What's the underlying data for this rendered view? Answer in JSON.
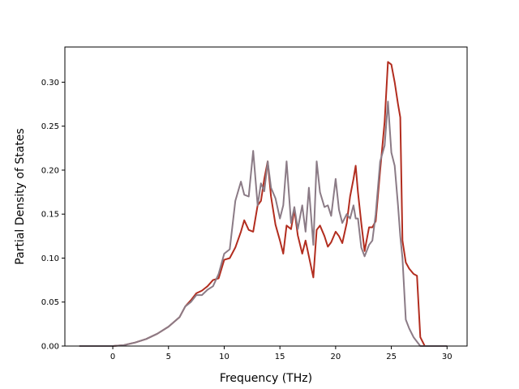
{
  "chart_data": {
    "type": "line",
    "title": "",
    "xlabel": "Frequency (THz)",
    "ylabel": "Partial Density of States",
    "xlim": [
      -4.3,
      31.8
    ],
    "ylim": [
      0.0,
      0.34
    ],
    "xticks": [
      0,
      5,
      10,
      15,
      20,
      25,
      30
    ],
    "xtick_labels": [
      "0",
      "5",
      "10",
      "15",
      "20",
      "25",
      "30"
    ],
    "yticks": [
      0.0,
      0.05,
      0.1,
      0.15,
      0.2,
      0.25,
      0.3
    ],
    "ytick_labels": [
      "0.00",
      "0.05",
      "0.10",
      "0.15",
      "0.20",
      "0.25",
      "0.30"
    ],
    "grid": false,
    "legend": "none",
    "series": [
      {
        "color": "#b22d1f",
        "points": [
          [
            -3,
            0
          ],
          [
            0,
            0
          ],
          [
            1,
            0.001
          ],
          [
            2,
            0.004
          ],
          [
            3,
            0.008
          ],
          [
            4,
            0.014
          ],
          [
            5,
            0.022
          ],
          [
            6,
            0.033
          ],
          [
            6.5,
            0.045
          ],
          [
            7,
            0.052
          ],
          [
            7.5,
            0.06
          ],
          [
            8,
            0.063
          ],
          [
            8.5,
            0.068
          ],
          [
            9,
            0.075
          ],
          [
            9.5,
            0.077
          ],
          [
            10,
            0.098
          ],
          [
            10.5,
            0.1
          ],
          [
            11,
            0.112
          ],
          [
            11.5,
            0.13
          ],
          [
            11.8,
            0.143
          ],
          [
            12.2,
            0.132
          ],
          [
            12.6,
            0.13
          ],
          [
            13,
            0.16
          ],
          [
            13.3,
            0.165
          ],
          [
            13.6,
            0.19
          ],
          [
            13.9,
            0.21
          ],
          [
            14.2,
            0.17
          ],
          [
            14.6,
            0.138
          ],
          [
            15,
            0.12
          ],
          [
            15.3,
            0.105
          ],
          [
            15.6,
            0.137
          ],
          [
            16,
            0.133
          ],
          [
            16.3,
            0.155
          ],
          [
            16.6,
            0.126
          ],
          [
            17,
            0.105
          ],
          [
            17.3,
            0.12
          ],
          [
            17.6,
            0.102
          ],
          [
            18,
            0.078
          ],
          [
            18.3,
            0.132
          ],
          [
            18.6,
            0.137
          ],
          [
            19,
            0.125
          ],
          [
            19.3,
            0.113
          ],
          [
            19.6,
            0.118
          ],
          [
            20,
            0.13
          ],
          [
            20.3,
            0.125
          ],
          [
            20.6,
            0.117
          ],
          [
            21,
            0.14
          ],
          [
            21.3,
            0.17
          ],
          [
            21.6,
            0.19
          ],
          [
            21.8,
            0.205
          ],
          [
            22,
            0.175
          ],
          [
            22.3,
            0.14
          ],
          [
            22.6,
            0.108
          ],
          [
            23,
            0.135
          ],
          [
            23.3,
            0.135
          ],
          [
            23.6,
            0.142
          ],
          [
            24,
            0.2
          ],
          [
            24.4,
            0.255
          ],
          [
            24.7,
            0.323
          ],
          [
            25,
            0.32
          ],
          [
            25.3,
            0.3
          ],
          [
            25.6,
            0.275
          ],
          [
            25.8,
            0.26
          ],
          [
            26,
            0.12
          ],
          [
            26.3,
            0.095
          ],
          [
            26.6,
            0.088
          ],
          [
            27,
            0.082
          ],
          [
            27.3,
            0.08
          ],
          [
            27.6,
            0.01
          ],
          [
            28,
            0
          ],
          [
            30,
            0
          ]
        ]
      },
      {
        "color": "#8b7b86",
        "points": [
          [
            -3,
            0
          ],
          [
            0,
            0
          ],
          [
            1,
            0.001
          ],
          [
            2,
            0.004
          ],
          [
            3,
            0.008
          ],
          [
            4,
            0.014
          ],
          [
            5,
            0.022
          ],
          [
            6,
            0.033
          ],
          [
            6.5,
            0.045
          ],
          [
            7,
            0.05
          ],
          [
            7.5,
            0.058
          ],
          [
            8,
            0.058
          ],
          [
            8.5,
            0.064
          ],
          [
            9,
            0.068
          ],
          [
            9.5,
            0.082
          ],
          [
            10,
            0.105
          ],
          [
            10.5,
            0.11
          ],
          [
            11,
            0.165
          ],
          [
            11.5,
            0.187
          ],
          [
            11.8,
            0.172
          ],
          [
            12.2,
            0.17
          ],
          [
            12.6,
            0.222
          ],
          [
            13,
            0.16
          ],
          [
            13.3,
            0.185
          ],
          [
            13.6,
            0.176
          ],
          [
            13.9,
            0.21
          ],
          [
            14.2,
            0.18
          ],
          [
            14.6,
            0.168
          ],
          [
            15,
            0.145
          ],
          [
            15.3,
            0.16
          ],
          [
            15.6,
            0.21
          ],
          [
            16,
            0.14
          ],
          [
            16.3,
            0.158
          ],
          [
            16.6,
            0.133
          ],
          [
            17,
            0.16
          ],
          [
            17.3,
            0.13
          ],
          [
            17.6,
            0.18
          ],
          [
            18,
            0.115
          ],
          [
            18.3,
            0.21
          ],
          [
            18.6,
            0.175
          ],
          [
            19,
            0.158
          ],
          [
            19.3,
            0.16
          ],
          [
            19.6,
            0.148
          ],
          [
            20,
            0.19
          ],
          [
            20.3,
            0.155
          ],
          [
            20.6,
            0.14
          ],
          [
            21,
            0.15
          ],
          [
            21.3,
            0.145
          ],
          [
            21.6,
            0.16
          ],
          [
            21.8,
            0.145
          ],
          [
            22,
            0.145
          ],
          [
            22.3,
            0.112
          ],
          [
            22.6,
            0.102
          ],
          [
            23,
            0.115
          ],
          [
            23.3,
            0.12
          ],
          [
            23.6,
            0.15
          ],
          [
            24,
            0.21
          ],
          [
            24.4,
            0.228
          ],
          [
            24.7,
            0.278
          ],
          [
            25,
            0.22
          ],
          [
            25.3,
            0.205
          ],
          [
            25.6,
            0.16
          ],
          [
            25.8,
            0.125
          ],
          [
            26,
            0.1
          ],
          [
            26.3,
            0.03
          ],
          [
            26.6,
            0.02
          ],
          [
            27,
            0.01
          ],
          [
            27.3,
            0.005
          ],
          [
            27.6,
            0
          ],
          [
            28,
            0
          ],
          [
            30,
            0
          ]
        ]
      }
    ]
  }
}
